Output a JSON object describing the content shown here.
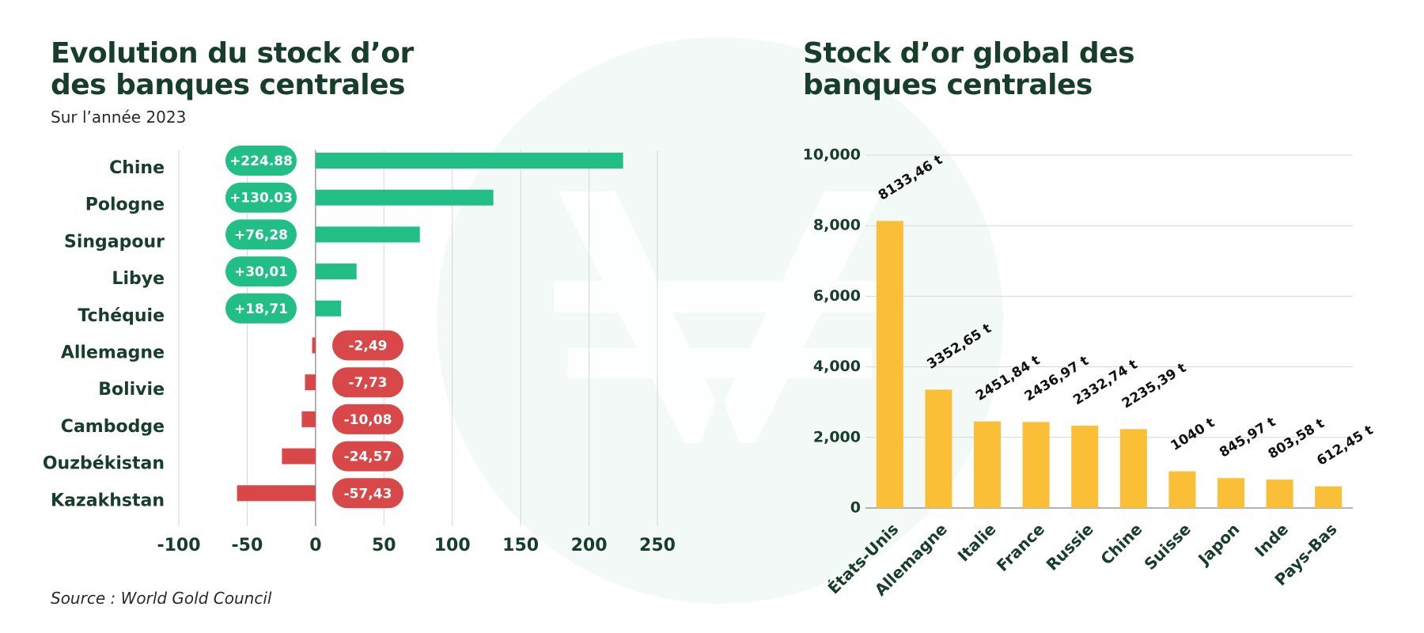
{
  "left_chart": {
    "title_line1": "Evolution du stock d’or",
    "title_line2": "des banques centrales",
    "subtitle": "Sur l’année 2023"
  },
  "right_chart": {
    "title_line1": "Stock d’or global des",
    "title_line2": "banques centrales"
  },
  "source": "Source : World Gold Council",
  "colors": {
    "positive": "#21bf86",
    "negative": "#d94848",
    "gold": "#fbbf37",
    "title": "#173d2b",
    "grid": "#d6d6d6",
    "watermark": "#f3f9f6"
  },
  "chart_data": [
    {
      "type": "bar",
      "orientation": "horizontal",
      "title": "Evolution du stock d’or des banques centrales",
      "subtitle": "Sur l’année 2023",
      "categories": [
        "Chine",
        "Pologne",
        "Singapour",
        "Libye",
        "Tchéquie",
        "Allemagne",
        "Bolivie",
        "Cambodge",
        "Ouzbékistan",
        "Kazakhstan"
      ],
      "values": [
        224.88,
        130.03,
        76.28,
        30.01,
        18.71,
        -2.49,
        -7.73,
        -10.08,
        -24.57,
        -57.43
      ],
      "labels": [
        "+224.88",
        "+130.03",
        "+76,28",
        "+30,01",
        "+18,71",
        "-2,49",
        "-7,73",
        "-10,08",
        "-24,57",
        "-57,43"
      ],
      "xlim": [
        -100,
        250
      ],
      "xticks": [
        -100,
        -50,
        0,
        50,
        100,
        150,
        200,
        250
      ],
      "xtick_labels": [
        "-100",
        "-50",
        "0",
        "50",
        "100",
        "150",
        "200",
        "250"
      ],
      "grid": true,
      "xlabel": "",
      "ylabel": ""
    },
    {
      "type": "bar",
      "orientation": "vertical",
      "title": "Stock d’or global des banques centrales",
      "categories": [
        "États-Unis",
        "Allemagne",
        "Italie",
        "France",
        "Russie",
        "Chine",
        "Suisse",
        "Japon",
        "Inde",
        "Pays-Bas"
      ],
      "values": [
        8133.46,
        3352.65,
        2451.84,
        2436.97,
        2332.74,
        2235.39,
        1040,
        845.97,
        803.58,
        612.45
      ],
      "labels": [
        "8133,46 t",
        "3352,65 t",
        "2451,84 t",
        "2436,97 t",
        "2332,74 t",
        "2235,39 t",
        "1040 t",
        "845,97 t",
        "803,58 t",
        "612,45 t"
      ],
      "ylim": [
        0,
        10000
      ],
      "yticks": [
        0,
        2000,
        4000,
        6000,
        8000,
        10000
      ],
      "ytick_labels": [
        "0",
        "2,000",
        "4,000",
        "6,000",
        "8,000",
        "10,000"
      ],
      "grid": true,
      "xlabel": "",
      "ylabel": ""
    }
  ]
}
